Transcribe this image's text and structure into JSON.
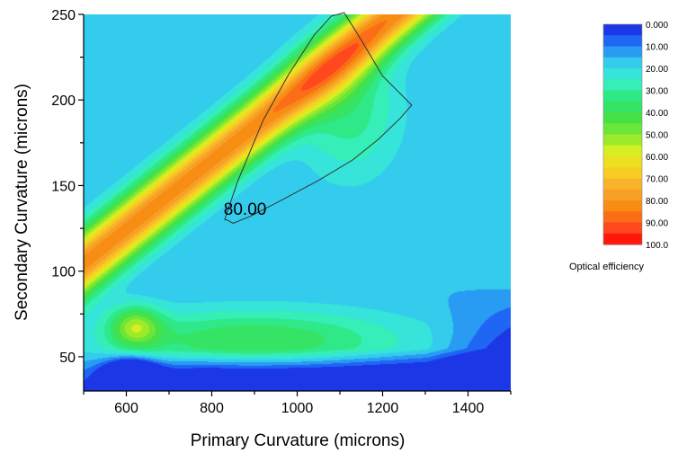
{
  "chart_data": {
    "type": "heatmap",
    "subtype": "filled-contour",
    "title": "",
    "xlabel": "Primary Curvature (microns)",
    "ylabel": "Secondary Curvature (microns)",
    "xlim": [
      500,
      1500
    ],
    "ylim": [
      30,
      250
    ],
    "xticks": [
      600,
      800,
      1000,
      1200,
      1400
    ],
    "yticks": [
      50,
      100,
      150,
      200,
      250
    ],
    "colorbar": {
      "title": "Optical efficiency",
      "range": [
        0,
        100
      ],
      "levels": 20,
      "tick_labels": [
        "0.000",
        "10.00",
        "20.00",
        "30.00",
        "40.00",
        "50.00",
        "60.00",
        "70.00",
        "80.00",
        "90.00",
        "100.0"
      ],
      "palette": [
        "#1a20e0",
        "#1f6ef5",
        "#33c8f0",
        "#38f0d0",
        "#2ee880",
        "#3ee04a",
        "#80e830",
        "#e0f020",
        "#f8d020",
        "#f8a830",
        "#f88a10",
        "#ff5020",
        "#ff0000"
      ],
      "placement": "right"
    },
    "contour_line": {
      "level": 80,
      "label": "80.00",
      "path": [
        [
          830,
          130
        ],
        [
          860,
          152
        ],
        [
          920,
          188
        ],
        [
          980,
          215
        ],
        [
          1040,
          238
        ],
        [
          1080,
          249
        ],
        [
          1110,
          251
        ],
        [
          1150,
          235
        ],
        [
          1200,
          214
        ],
        [
          1268,
          197
        ],
        [
          1240,
          189
        ],
        [
          1190,
          177
        ],
        [
          1130,
          165
        ],
        [
          1050,
          153
        ],
        [
          960,
          141
        ],
        [
          890,
          132
        ],
        [
          850,
          128
        ],
        [
          835,
          130
        ]
      ]
    },
    "key_points": [
      {
        "x": 1110,
        "y": 195,
        "z": 89,
        "note": "peak region"
      },
      {
        "x": 615,
        "y": 65,
        "z": 66
      },
      {
        "x": 610,
        "y": 40,
        "z": 3
      },
      {
        "x": 520,
        "y": 240,
        "z": 15
      },
      {
        "x": 1480,
        "y": 35,
        "z": 5
      }
    ]
  }
}
